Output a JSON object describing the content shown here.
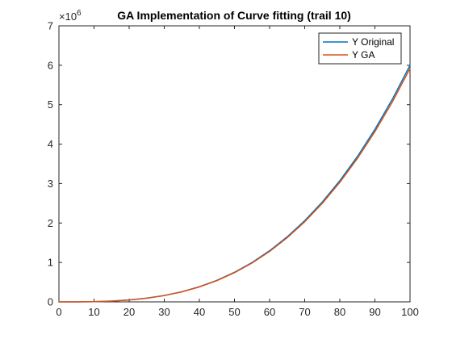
{
  "chart_data": {
    "type": "line",
    "title": "GA Implementation of Curve fitting (trail 10)",
    "xlabel": "",
    "ylabel": "",
    "xlim": [
      0,
      100
    ],
    "ylim": [
      0,
      7000000
    ],
    "y_exponent_label": "×10",
    "y_exponent_power": "6",
    "x_ticks": [
      0,
      10,
      20,
      30,
      40,
      50,
      60,
      70,
      80,
      90,
      100
    ],
    "x_tick_labels": [
      "0",
      "10",
      "20",
      "30",
      "40",
      "50",
      "60",
      "70",
      "80",
      "90",
      "100"
    ],
    "y_ticks": [
      0,
      1000000,
      2000000,
      3000000,
      4000000,
      5000000,
      6000000,
      7000000
    ],
    "y_tick_labels": [
      "0",
      "1",
      "2",
      "3",
      "4",
      "5",
      "6",
      "7"
    ],
    "grid": false,
    "legend_placement": "top-right",
    "x": [
      0,
      5,
      10,
      15,
      20,
      25,
      30,
      35,
      40,
      45,
      50,
      55,
      60,
      65,
      70,
      75,
      80,
      85,
      90,
      95,
      100
    ],
    "series": [
      {
        "name": "Y Original",
        "color": "#0072BD",
        "values": [
          0,
          750,
          6000,
          20250,
          48000,
          93750,
          162000,
          257250,
          384000,
          546750,
          750000,
          998250,
          1296000,
          1647750,
          2058000,
          2531250,
          3072000,
          3684750,
          4374000,
          5144250,
          6000000
        ]
      },
      {
        "name": "Y GA",
        "color": "#D95319",
        "values": [
          0,
          740,
          5920,
          19980,
          47360,
          92500,
          159840,
          253820,
          378880,
          539460,
          740000,
          984940,
          1278720,
          1625780,
          2030560,
          2497500,
          3031040,
          3635620,
          4315680,
          5075660,
          5920000
        ]
      }
    ]
  }
}
